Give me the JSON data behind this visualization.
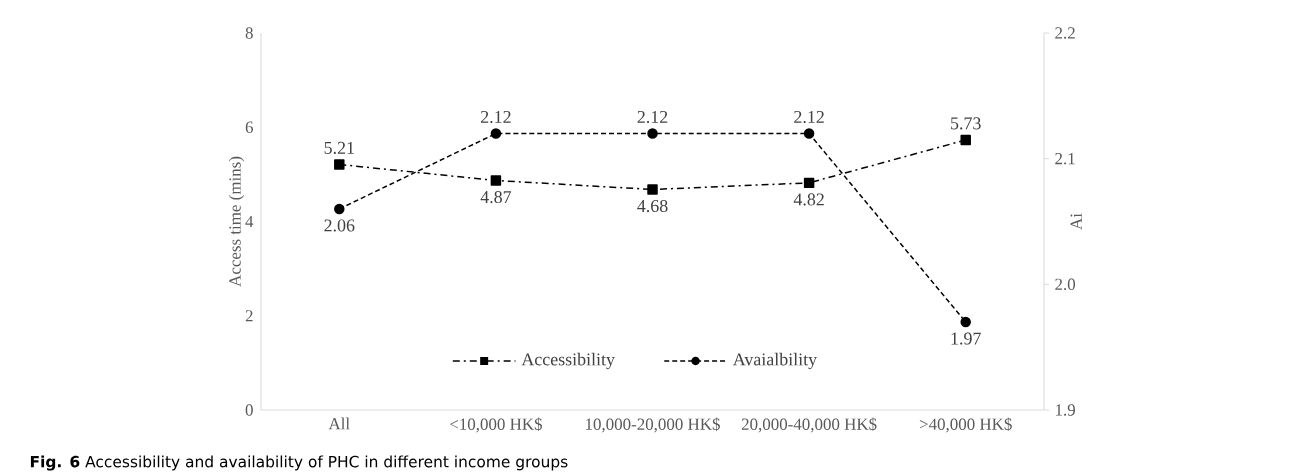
{
  "chart_data": {
    "type": "line",
    "ylabel": "Access time (mins)",
    "y2label": "Ai",
    "categories": [
      "All",
      "<10,000 HK$",
      "10,000-20,000 HK$",
      "20,000-40,000 HK$",
      ">40,000 HK$"
    ],
    "series": [
      {
        "name": "Accessibility",
        "color": "#000000",
        "values": [
          5.21,
          4.87,
          4.68,
          4.82,
          5.73
        ],
        "marker": "square",
        "line_style": "dashdot"
      },
      {
        "name": "Avaialbility",
        "color": "#000000",
        "values": [
          2.06,
          2.12,
          2.12,
          2.12,
          1.97
        ],
        "marker": "circle",
        "line_style": "dashed",
        "axis": "y2"
      }
    ],
    "ylim": [
      0,
      8
    ],
    "yticks": [
      0,
      2,
      4,
      6,
      8
    ],
    "y2lim": [
      1.9,
      2.2
    ],
    "y2ticks": [
      {
        "value": 1.9,
        "label": "1.9"
      },
      {
        "value": 2.0,
        "label": "2.0"
      },
      {
        "value": 2.1,
        "label": "2.1"
      },
      {
        "value": 2.2,
        "label": "2.2"
      }
    ],
    "data_labels": true,
    "legend": "bottom",
    "grid": false,
    "annotations": [
      "**Fig. 6** Accessibility and availability of PHC in different income groups"
    ]
  }
}
